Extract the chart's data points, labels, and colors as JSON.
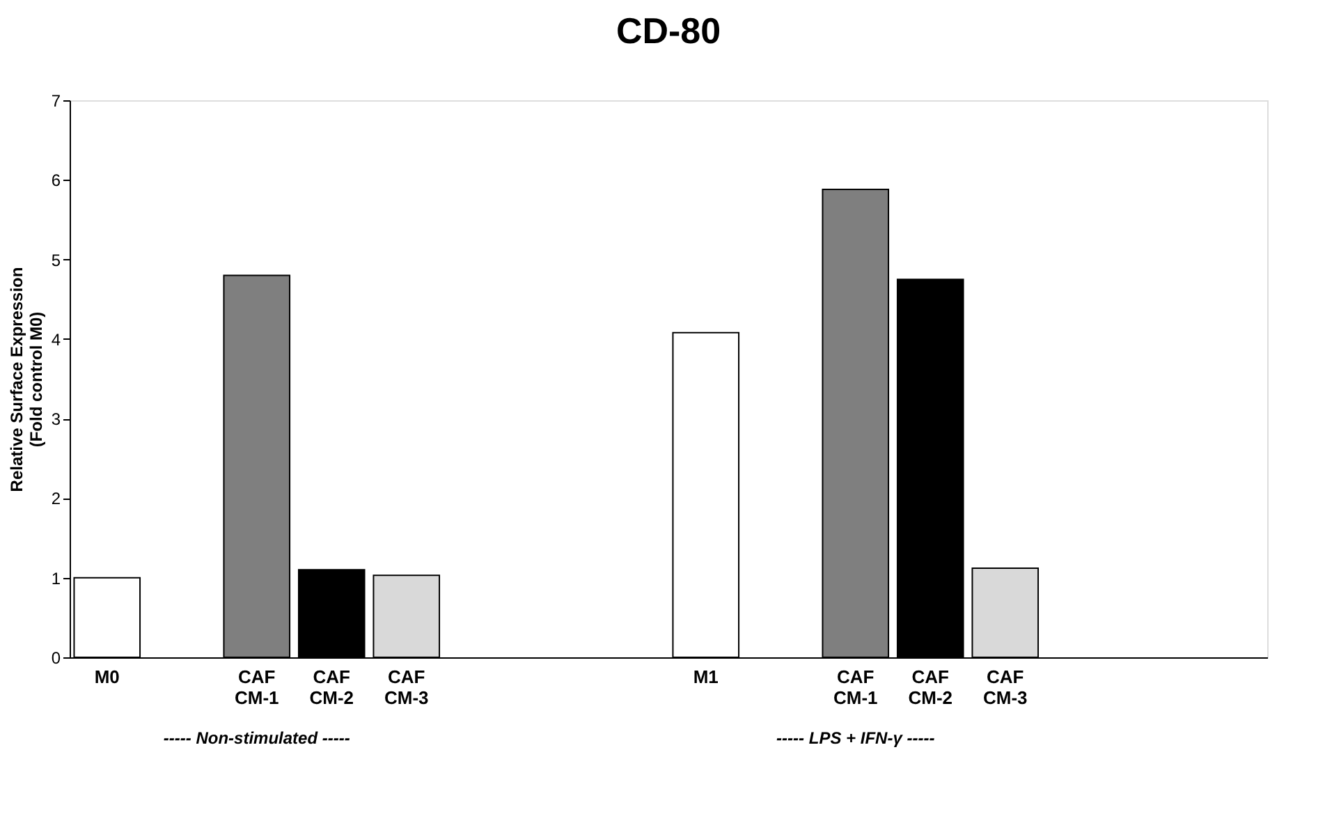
{
  "chart_data": {
    "type": "bar",
    "title": "CD-80",
    "ylabel": "Relative Surface Expression\n(Fold control M0)",
    "categories": [
      "M0",
      null,
      "CAF CM-1",
      "CAF CM-2",
      "CAF CM-3",
      null,
      null,
      null,
      "M1",
      null,
      "CAF CM-1",
      "CAF CM-2",
      "CAF CM-3",
      null,
      null,
      null
    ],
    "values": [
      1.0,
      null,
      4.8,
      1.1,
      1.03,
      null,
      null,
      null,
      4.08,
      null,
      5.88,
      4.75,
      1.12,
      null,
      null,
      null
    ],
    "colors": [
      "#ffffff",
      null,
      "#7f7f7f",
      "#000000",
      "#d9d9d9",
      null,
      null,
      null,
      "#ffffff",
      null,
      "#7f7f7f",
      "#000000",
      "#d9d9d9",
      null,
      null,
      null
    ],
    "ylim": [
      0,
      7
    ],
    "yticks": [
      0,
      1,
      2,
      3,
      4,
      5,
      6,
      7
    ],
    "grid": false,
    "annotations": [
      "----- Non-stimulated -----",
      "----- LPS + IFN-γ -----"
    ]
  }
}
